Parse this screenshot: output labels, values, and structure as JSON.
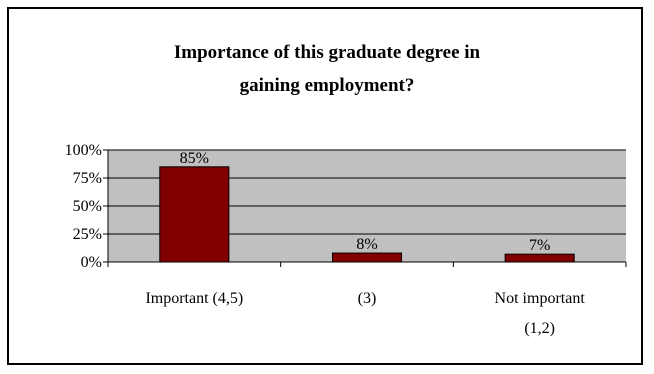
{
  "chart_data": {
    "type": "bar",
    "title_lines": [
      "Importance of this graduate degree in",
      "gaining employment?"
    ],
    "categories": [
      {
        "lines": [
          "Important (4,5)"
        ]
      },
      {
        "lines": [
          "(3)"
        ]
      },
      {
        "lines": [
          "Not important",
          "(1,2)"
        ]
      }
    ],
    "values": [
      85,
      8,
      7
    ],
    "value_labels": [
      "85%",
      "8%",
      "7%"
    ],
    "ylim": [
      0,
      100
    ],
    "yticks": [
      0,
      25,
      50,
      75,
      100
    ],
    "ytick_labels": [
      "0%",
      "25%",
      "50%",
      "75%",
      "100%"
    ],
    "grid": true,
    "legend": "none",
    "colors": {
      "bar_fill": "#800000",
      "bar_stroke": "#000000",
      "plot_bg": "#c0c0c0",
      "grid": "#000000",
      "text": "#000000"
    }
  }
}
